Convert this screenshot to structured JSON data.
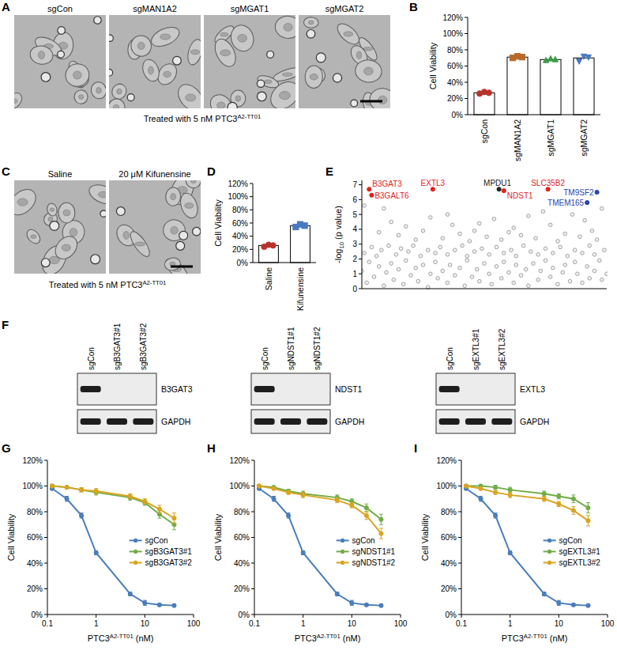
{
  "panels": [
    "A",
    "B",
    "C",
    "D",
    "E",
    "F",
    "G",
    "H",
    "I"
  ],
  "images": [
    {
      "labels": [
        "sgCon",
        "sgMAN1A2",
        "sgMGAT1",
        "sgMGAT2"
      ],
      "caption": [
        "Treated with 5 nM PTC3",
        {
          "sup": "A2-TT01"
        }
      ]
    },
    {
      "labels": [
        "Saline",
        "20 μM Kifunensine"
      ],
      "caption": [
        "Treated with 5 nM PTC3",
        {
          "sup": "A2-TT01"
        }
      ]
    }
  ],
  "chart_data": [
    {
      "type": "bar",
      "y_label": "Cell Viability",
      "categories": [
        "sgCon",
        "sgMAN1A2",
        "sgMGAT1",
        "sgMGAT2"
      ],
      "values": [
        27,
        71,
        68,
        70
      ],
      "replicates": [
        [
          26,
          28,
          27
        ],
        [
          70,
          72,
          71
        ],
        [
          67,
          69,
          68
        ],
        [
          66,
          72,
          71
        ]
      ],
      "colors": [
        "#b5342b",
        "#b8692a",
        "#3e9a48",
        "#4a78c0"
      ],
      "ylim": [
        0,
        120
      ],
      "yticks": [
        {
          "value": 0,
          "label": "0%"
        },
        {
          "value": 20,
          "label": "20%"
        },
        {
          "value": 40,
          "label": "40%"
        },
        {
          "value": 60,
          "label": "60%"
        },
        {
          "value": 80,
          "label": "80%"
        },
        {
          "value": 100,
          "label": "100%"
        },
        {
          "value": 120,
          "label": "120%"
        }
      ],
      "grid": false
    },
    {
      "type": "bar",
      "y_label": "Cell Viability",
      "categories": [
        "Saline",
        "Kifunensine"
      ],
      "values": [
        26,
        56
      ],
      "replicates": [
        [
          24,
          27,
          26
        ],
        [
          54,
          58,
          56
        ]
      ],
      "colors": [
        "#b5342b",
        "#4a78c0"
      ],
      "ylim": [
        0,
        120
      ],
      "yticks": [
        {
          "value": 0,
          "label": "0%"
        },
        {
          "value": 20,
          "label": "20%"
        },
        {
          "value": 40,
          "label": "40%"
        },
        {
          "value": 60,
          "label": "60%"
        },
        {
          "value": 80,
          "label": "80%"
        },
        {
          "value": 100,
          "label": "100%"
        },
        {
          "value": 120,
          "label": "120%"
        }
      ],
      "grid": false
    },
    {
      "type": "scatter",
      "y_label": [
        "-log",
        {
          "sub": "10"
        },
        " (p value)"
      ],
      "x": [
        1,
        9,
        12,
        15,
        18,
        22,
        25,
        28,
        33,
        37,
        40,
        44,
        48,
        51,
        54,
        57,
        62,
        65,
        68,
        71,
        74,
        77,
        83,
        86,
        89,
        91,
        94,
        98,
        7,
        35,
        46,
        60,
        80,
        96,
        1,
        4,
        6,
        8,
        11,
        14,
        16,
        19,
        21,
        24,
        27,
        30,
        32,
        35,
        38,
        41,
        43,
        46,
        49,
        52,
        55,
        58,
        61,
        63,
        66,
        69,
        72,
        75,
        78,
        81,
        84,
        87,
        90,
        93,
        95,
        99,
        0,
        2,
        3,
        5,
        7,
        9,
        10,
        12,
        13,
        15,
        17,
        18,
        20,
        22,
        23,
        25,
        27,
        28,
        30,
        31,
        33,
        35,
        36,
        38,
        40,
        42,
        43,
        45,
        47,
        48,
        50,
        52,
        53,
        55,
        57,
        58,
        60,
        62,
        63,
        65,
        67,
        68,
        70,
        72,
        73,
        75,
        77,
        78,
        80,
        82,
        83,
        85,
        87,
        88,
        90,
        92,
        93,
        95,
        97,
        98,
        100
      ],
      "values": [
        5.6,
        5.4,
        4.5,
        3.6,
        4.2,
        3.3,
        3.9,
        4.8,
        3.4,
        4.3,
        3.7,
        3.2,
        4.4,
        3.5,
        4.7,
        3.3,
        4.1,
        3.6,
        4.9,
        3.4,
        5.2,
        4.3,
        3.7,
        5.0,
        3.5,
        4.6,
        3.9,
        5.4,
        3.8,
        5.0,
        3.9,
        3.8,
        3.2,
        3.3,
        2.4,
        2.8,
        2.2,
        2.6,
        2.9,
        2.3,
        2.7,
        2.5,
        2.9,
        2.2,
        2.6,
        2.4,
        2.8,
        2.3,
        2.6,
        2.9,
        2.2,
        2.5,
        2.7,
        2.3,
        2.8,
        2.4,
        2.6,
        2.2,
        2.9,
        2.5,
        2.3,
        2.7,
        2.4,
        2.8,
        2.2,
        2.6,
        2.4,
        2.9,
        2.3,
        2.6,
        1.2,
        0.4,
        1.8,
        0.8,
        1.5,
        0.2,
        1.1,
        1.7,
        0.6,
        1.3,
        0.3,
        1.9,
        0.9,
        1.4,
        0.5,
        1.6,
        0.1,
        1.0,
        1.8,
        0.7,
        1.2,
        0.4,
        1.6,
        0.9,
        1.4,
        0.2,
        1.9,
        0.8,
        1.3,
        0.5,
        1.7,
        1.0,
        0.3,
        1.5,
        0.7,
        1.8,
        1.1,
        0.4,
        1.6,
        0.9,
        1.3,
        0.2,
        1.7,
        0.6,
        1.2,
        1.9,
        0.8,
        1.4,
        0.3,
        1.1,
        1.6,
        0.5,
        1.8,
        1.0,
        0.4,
        1.5,
        0.7,
        1.2,
        1.9,
        0.6,
        1.0
      ],
      "highlights": [
        {
          "label": "B3GAT3",
          "x": 3,
          "y": 6.7,
          "color": "#e0231d"
        },
        {
          "label": "B3GALT6",
          "x": 4,
          "y": 6.3,
          "color": "#e0231d"
        },
        {
          "label": "EXTL3",
          "x": 29,
          "y": 6.7,
          "color": "#e0231d"
        },
        {
          "label": "MPDU1",
          "x": 56,
          "y": 6.7,
          "color": "#222222"
        },
        {
          "label": "NDST1",
          "x": 58,
          "y": 6.6,
          "color": "#e0231d"
        },
        {
          "label": "SLC35B2",
          "x": 76,
          "y": 6.7,
          "color": "#e0231d"
        },
        {
          "label": "TM9SF2",
          "x": 96,
          "y": 6.5,
          "color": "#2a44a8"
        },
        {
          "label": "TMEM165",
          "x": 92,
          "y": 5.8,
          "color": "#2a44a8"
        }
      ],
      "xlim": [
        0,
        100
      ],
      "ylim": [
        0,
        7.3
      ],
      "yticks": [
        0,
        1,
        2,
        3,
        4,
        5,
        6,
        7
      ],
      "tick_labels": "y",
      "grid": false
    },
    {
      "type": "line",
      "x_label": [
        "PTC3",
        {
          "sup": "A2-TT01"
        },
        " (nM)"
      ],
      "y_label": "Cell Viability",
      "x": [
        0.125,
        0.25,
        0.5,
        1,
        5,
        10,
        20,
        40
      ],
      "series": [
        {
          "name": "sgCon",
          "color": "#4a7ebb",
          "values": [
            98,
            90,
            77,
            48,
            16,
            9,
            7.5,
            7
          ],
          "errors": [
            1,
            2,
            2,
            1.5,
            1.5,
            2,
            1,
            1
          ]
        },
        {
          "name": "sgB3GAT3#1",
          "color": "#70ad47",
          "values": [
            100,
            99,
            97,
            95,
            91,
            87,
            78,
            70
          ],
          "errors": [
            1,
            1,
            1.5,
            2,
            2,
            2,
            3,
            4
          ]
        },
        {
          "name": "sgB3GAT3#2",
          "color": "#d9a520",
          "values": [
            100,
            99,
            97,
            96,
            92,
            88,
            82,
            75
          ],
          "errors": [
            1,
            1,
            1.5,
            2,
            2,
            2,
            3,
            4
          ]
        }
      ],
      "log": "x",
      "xlim": [
        0.1,
        100
      ],
      "xticks": [
        0.1,
        1,
        10,
        100
      ],
      "ylim": [
        0,
        120
      ],
      "yticks": [
        {
          "value": 0,
          "label": "0%"
        },
        {
          "value": 20,
          "label": "20%"
        },
        {
          "value": 40,
          "label": "40%"
        },
        {
          "value": 60,
          "label": "60%"
        },
        {
          "value": 80,
          "label": "80%"
        },
        {
          "value": 100,
          "label": "100%"
        },
        {
          "value": 120,
          "label": "120%"
        }
      ],
      "legend": "right",
      "marker": "circle",
      "grid": false
    },
    {
      "type": "line",
      "x_label": [
        "PTC3",
        {
          "sup": "A2-TT01"
        },
        " (nM)"
      ],
      "y_label": "Cell Viability",
      "x": [
        0.125,
        0.25,
        0.5,
        1,
        5,
        10,
        20,
        40
      ],
      "series": [
        {
          "name": "sgCon",
          "color": "#4a7ebb",
          "values": [
            98,
            90,
            77,
            48,
            16,
            9,
            7.5,
            7
          ],
          "errors": [
            1,
            2,
            2,
            1.5,
            1.5,
            2,
            1,
            1
          ]
        },
        {
          "name": "sgNDST1#1",
          "color": "#70ad47",
          "values": [
            100,
            99,
            96,
            94,
            91,
            88,
            83,
            74
          ],
          "errors": [
            1,
            1,
            1.5,
            2,
            2,
            2,
            3,
            4
          ]
        },
        {
          "name": "sgNDST1#2",
          "color": "#d9a520",
          "values": [
            100,
            98,
            95,
            93,
            89,
            85,
            77,
            63
          ],
          "errors": [
            1,
            1,
            1.5,
            2,
            2,
            2,
            3,
            4
          ]
        }
      ],
      "log": "x",
      "xlim": [
        0.1,
        100
      ],
      "xticks": [
        0.1,
        1,
        10,
        100
      ],
      "ylim": [
        0,
        120
      ],
      "yticks": [
        {
          "value": 0,
          "label": "0%"
        },
        {
          "value": 20,
          "label": "20%"
        },
        {
          "value": 40,
          "label": "40%"
        },
        {
          "value": 60,
          "label": "60%"
        },
        {
          "value": 80,
          "label": "80%"
        },
        {
          "value": 100,
          "label": "100%"
        },
        {
          "value": 120,
          "label": "120%"
        }
      ],
      "legend": "right",
      "marker": "circle",
      "grid": false
    },
    {
      "type": "line",
      "x_label": [
        "PTC3",
        {
          "sup": "A2-TT01"
        },
        " (nM)"
      ],
      "y_label": "Cell Viability",
      "x": [
        0.125,
        0.25,
        0.5,
        1,
        5,
        10,
        20,
        40
      ],
      "series": [
        {
          "name": "sgCon",
          "color": "#4a7ebb",
          "values": [
            98,
            90,
            77,
            48,
            16,
            9,
            7.5,
            7
          ],
          "errors": [
            1,
            2,
            2,
            1.5,
            1.5,
            2,
            1,
            1
          ]
        },
        {
          "name": "sgEXTL3#1",
          "color": "#70ad47",
          "values": [
            100,
            100,
            99,
            97,
            94,
            92,
            90,
            83
          ],
          "errors": [
            1,
            1,
            1.5,
            2,
            2,
            2,
            3,
            4
          ]
        },
        {
          "name": "sgEXTL3#2",
          "color": "#d9a520",
          "values": [
            100,
            98,
            95,
            93,
            90,
            86,
            81,
            73
          ],
          "errors": [
            1,
            1,
            1.5,
            2,
            2,
            2,
            3,
            4
          ]
        }
      ],
      "log": "x",
      "xlim": [
        0.1,
        100
      ],
      "xticks": [
        0.1,
        1,
        10,
        100
      ],
      "ylim": [
        0,
        120
      ],
      "yticks": [
        {
          "value": 0,
          "label": "0%"
        },
        {
          "value": 20,
          "label": "20%"
        },
        {
          "value": 40,
          "label": "40%"
        },
        {
          "value": 60,
          "label": "60%"
        },
        {
          "value": 80,
          "label": "80%"
        },
        {
          "value": 100,
          "label": "100%"
        },
        {
          "value": 120,
          "label": "120%"
        }
      ],
      "legend": "right",
      "marker": "circle",
      "grid": false
    }
  ],
  "blots": [
    {
      "lanes": [
        "sgCon",
        "sgB3GAT3#1",
        "sgB3GAT3#2"
      ],
      "rows": [
        {
          "label": "B3GAT3",
          "bands": [
            true,
            false,
            false
          ]
        },
        {
          "label": "GAPDH",
          "bands": [
            true,
            true,
            true
          ]
        }
      ]
    },
    {
      "lanes": [
        "sgCon",
        "sgNDST1#1",
        "sgNDST1#2"
      ],
      "rows": [
        {
          "label": "NDST1",
          "bands": [
            true,
            false,
            false
          ]
        },
        {
          "label": "GAPDH",
          "bands": [
            true,
            true,
            true
          ]
        }
      ]
    },
    {
      "lanes": [
        "sgCon",
        "sgEXTL3#1",
        "sgEXTL3#2"
      ],
      "rows": [
        {
          "label": "EXTL3",
          "bands": [
            true,
            false,
            false
          ]
        },
        {
          "label": "GAPDH",
          "bands": [
            true,
            true,
            true
          ]
        }
      ]
    }
  ]
}
